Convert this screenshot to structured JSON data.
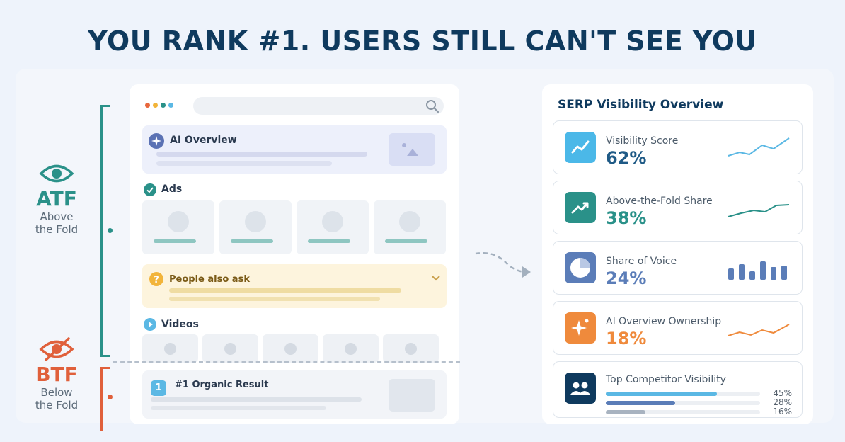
{
  "headline": "YOU RANK #1. USERS STILL CAN'T SEE YOU",
  "atf": {
    "abbr": "ATF",
    "line1": "Above",
    "line2": "the Fold",
    "color": "#2a9189",
    "icon": "eye-icon"
  },
  "btf": {
    "abbr": "BTF",
    "line1": "Below",
    "line2": "the Fold",
    "color": "#e0603b",
    "icon": "eye-slash-icon"
  },
  "serp": {
    "window_dots": [
      "#e8673c",
      "#f2b43a",
      "#2a9189",
      "#5bb8e4"
    ],
    "ai_overview": {
      "title": "AI Overview",
      "icon": "sparkle-icon"
    },
    "ads": {
      "title": "Ads",
      "icon": "check-circle-icon"
    },
    "people_also_ask": {
      "title": "People also ask",
      "icon": "question-icon"
    },
    "videos": {
      "title": "Videos",
      "icon": "play-icon"
    },
    "organic": {
      "badge": "1",
      "title": "#1 Organic Result"
    }
  },
  "overview": {
    "title": "SERP Visibility Overview",
    "metrics": [
      {
        "label": "Visibility Score",
        "value": "62%",
        "color": "#1f5a86",
        "icon": "trend-icon"
      },
      {
        "label": "Above-the-Fold Share",
        "value": "38%",
        "color": "#2a9189",
        "icon": "growth-icon"
      },
      {
        "label": "Share of Voice",
        "value": "24%",
        "color": "#5b7db8",
        "icon": "pie-icon"
      },
      {
        "label": "AI Overview Ownership",
        "value": "18%",
        "color": "#ef8a3c",
        "icon": "sparkle-icon"
      }
    ],
    "competitors": {
      "label": "Top Competitor Visibility",
      "icon": "users-icon",
      "bars": [
        {
          "value": 45,
          "text": "45%",
          "color": "#5bb8e4"
        },
        {
          "value": 28,
          "text": "28%",
          "color": "#5b7db8"
        },
        {
          "value": 16,
          "text": "16%",
          "color": "#a8b3c0"
        }
      ]
    }
  }
}
